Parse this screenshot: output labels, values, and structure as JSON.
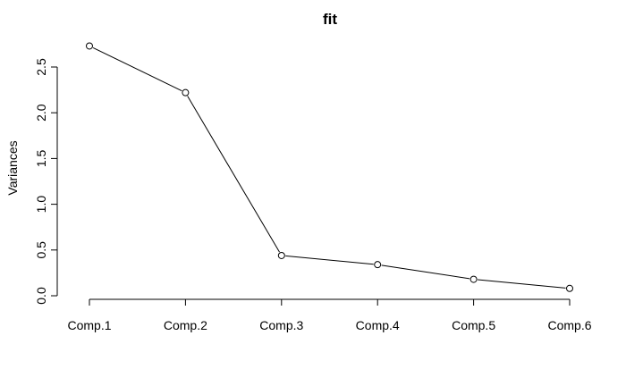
{
  "chart_data": {
    "type": "line",
    "title": "fit",
    "xlabel": "",
    "ylabel": "Variances",
    "categories": [
      "Comp.1",
      "Comp.2",
      "Comp.3",
      "Comp.4",
      "Comp.5",
      "Comp.6"
    ],
    "values": [
      2.73,
      2.22,
      0.44,
      0.34,
      0.18,
      0.08
    ],
    "ylim": [
      0,
      2.7
    ],
    "yticks": [
      "0.0",
      "0.5",
      "1.0",
      "1.5",
      "2.0",
      "2.5"
    ],
    "marker": "open-circle",
    "grid": false,
    "line_color": "#000000"
  }
}
